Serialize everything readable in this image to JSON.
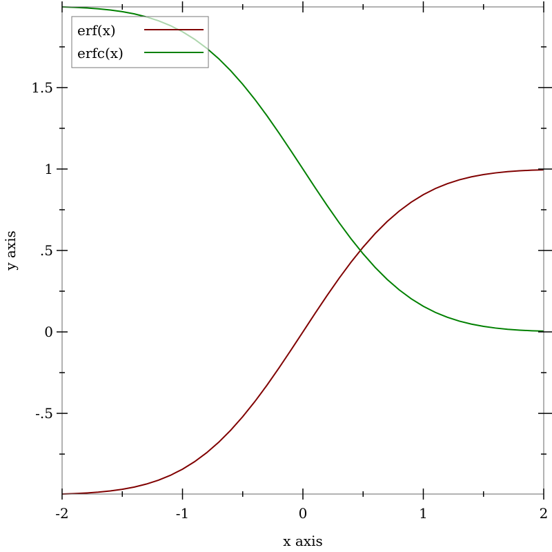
{
  "chart_data": {
    "type": "line",
    "title": "",
    "xlabel": "x axis",
    "ylabel": "y axis",
    "xlim": [
      -2,
      2
    ],
    "ylim": [
      -0.9953,
      1.9953
    ],
    "x_ticks": [
      {
        "v": -2,
        "label": "-2"
      },
      {
        "v": -1,
        "label": "-1"
      },
      {
        "v": 0,
        "label": "0"
      },
      {
        "v": 1,
        "label": "1"
      },
      {
        "v": 2,
        "label": "2"
      }
    ],
    "x_minor_ticks": [
      -1.5,
      -0.5,
      0.5,
      1.5
    ],
    "y_ticks": [
      {
        "v": -0.5,
        "label": "-.5"
      },
      {
        "v": 0,
        "label": "0"
      },
      {
        "v": 0.5,
        "label": ".5"
      },
      {
        "v": 1,
        "label": "1"
      },
      {
        "v": 1.5,
        "label": "1.5"
      }
    ],
    "y_minor_ticks": [
      -0.75,
      -0.25,
      0.25,
      0.75,
      1.25,
      1.75
    ],
    "legend_position": "top-left",
    "x": [
      -2,
      -1.9,
      -1.8,
      -1.7,
      -1.6,
      -1.5,
      -1.4,
      -1.3,
      -1.2,
      -1.1,
      -1,
      -0.9,
      -0.8,
      -0.7,
      -0.6,
      -0.5,
      -0.4,
      -0.3,
      -0.2,
      -0.1,
      0,
      0.1,
      0.2,
      0.3,
      0.4,
      0.5,
      0.6,
      0.7,
      0.8,
      0.9,
      1,
      1.1,
      1.2,
      1.3,
      1.4,
      1.5,
      1.6,
      1.7,
      1.8,
      1.9,
      2
    ],
    "series": [
      {
        "name": "erf(x)",
        "color": "#800000",
        "values": [
          -0.9953,
          -0.9928,
          -0.9891,
          -0.9838,
          -0.9763,
          -0.9661,
          -0.9523,
          -0.934,
          -0.9103,
          -0.8802,
          -0.8427,
          -0.7969,
          -0.7421,
          -0.6778,
          -0.6039,
          -0.5205,
          -0.4284,
          -0.3286,
          -0.2227,
          -0.1125,
          0,
          0.1125,
          0.2227,
          0.3286,
          0.4284,
          0.5205,
          0.6039,
          0.6778,
          0.7421,
          0.7969,
          0.8427,
          0.8802,
          0.9103,
          0.934,
          0.9523,
          0.9661,
          0.9763,
          0.9838,
          0.9891,
          0.9928,
          0.9953
        ]
      },
      {
        "name": "erfc(x)",
        "color": "#008000",
        "values": [
          1.9953,
          1.9928,
          1.9891,
          1.9838,
          1.9763,
          1.9661,
          1.9523,
          1.934,
          1.9103,
          1.8802,
          1.8427,
          1.7969,
          1.7421,
          1.6778,
          1.6039,
          1.5205,
          1.4284,
          1.3286,
          1.2227,
          1.1125,
          1,
          0.8875,
          0.7773,
          0.6714,
          0.5716,
          0.4795,
          0.3961,
          0.3222,
          0.2579,
          0.2031,
          0.1573,
          0.1198,
          0.0897,
          0.066,
          0.0477,
          0.0339,
          0.0237,
          0.0162,
          0.0109,
          0.0072,
          0.0047
        ]
      }
    ]
  }
}
